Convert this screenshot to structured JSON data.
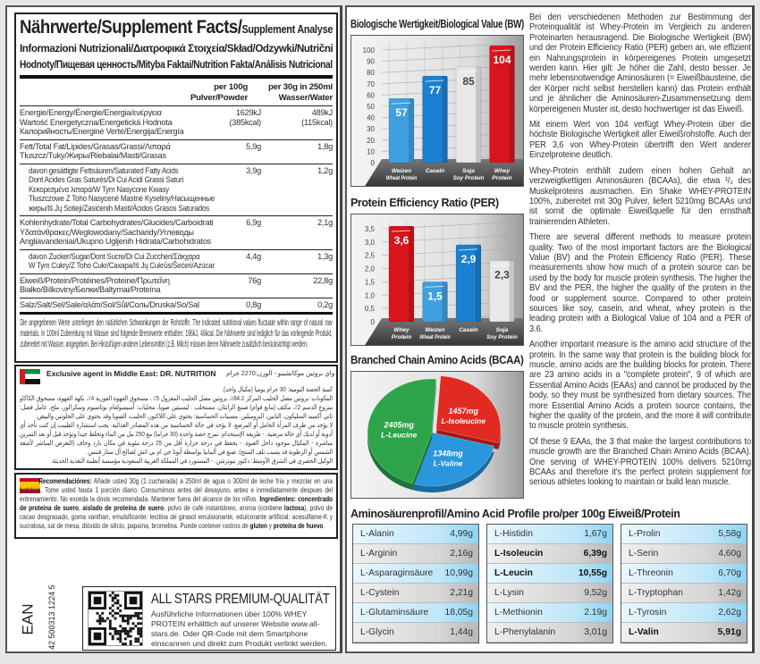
{
  "nutrition": {
    "title": "Nährwerte/Supplement Facts/",
    "title_small": "Supplement Analyse",
    "subtitle1": "Informazioni Nutrizionali/Διατροφικά Στοιχεία/Skład/Odzywki/Nutrični",
    "subtitle2": "Hodnoty/Пищевая ценность/Mityba Faktai/Nutrition Fakta/Análisis Nutricional",
    "col1": "per 100g\nPulver/Powder",
    "col2": "per 30g in 250ml\nWasser/Water",
    "rows": [
      {
        "label": "Energie/Energy/Énergie/Energia/ενέργεια\nWartość Energetyczna/Energetická Hodnota\nКалорийность/Energinė Vertė/Energija/Energía",
        "v1": "1629kJ\n(385kcal)",
        "v2": "489kJ\n(115kcal)"
      },
      {
        "label": "Fett/Total Fat/Lipides/Grasas/Grassi/Λιπαρά\nTłuszcz/Tuky/Жиры/Riebalai/Masti/Grasas",
        "v1": "5,9g",
        "v2": "1,8g"
      },
      {
        "label": "davon gesättigte Fettsäuren/Saturated Fatty Acids\nDont Acides Gras Saturés/Di Cui Acidi Grassi Saturi\nΚεκορεσμένα λιπαρά/W Tym Nasycone Kwasy\nTłuszczowe Z Toho Nasycené Mastné Kyseliny/Насыщенные\nжиры/Iš Jų Sotieji/Zasićenih Masti/Ácidos Grasos Saturados",
        "v1": "3,9g",
        "v2": "1,2g"
      },
      {
        "label": "Kohlenhydrate/Total Carbohydrates/Glucides/Carboidrati\nΥδατάνθρακες/Weglowodany/Sacharidy/Углеводы\nAngliavandeniai/Ukupno Ugljenih Hidrata/Carbohidratos",
        "v1": "6,9g",
        "v2": "2,1g"
      },
      {
        "label": "davon Zucker/Sugar/Dont Sucre/Di Cui Zuccheri/Σάκχαρα\nW Tym Cukry/Z Toho Cukr/Сахара/Iš Jų Cukrūs/Šećeri/Azúcar",
        "v1": "4,4g",
        "v2": "1,3g"
      },
      {
        "label": "Eiweiß/Protein/Protéines/Proteine/Πρωτεΐνη\nBiałko/Bílkoviny/Белки/Baltymai/Proteína",
        "v1": "76g",
        "v2": "22,8g"
      },
      {
        "label": "Salz/Salt/Sel/Sale/αλάτι/Sol/Sůl/Соль/Druska/So/Sal",
        "v1": "0,8g",
        "v2": "0,2g"
      }
    ],
    "note": "Die angegebenen Werte unterliegen den natürlichen Schwankungen der Rohstoffe. The indicated nutritional values fluctuate within range of natural raw materials. In 100ml Zubereitung mit Wasser sind folgende Brennwerte enthalten: 196kJ, 46kcal. Die Nährwerte sind lediglich für das vorliegende Produkt, zubereitet mit Wasser, angegeben. Bei Hinzufügen anderer Lebensmittel (z.B. Milch) müssen deren Nährwerte zusätzlich berücksichtigt werden."
  },
  "arabic": {
    "agent": "Exclusive agent in Middle East: DR. NUTRITION",
    "line1": "واي بروتين موكاتشينو - الوزن:2270 جرام",
    "line2": "كمية الحصة اليومية: 30 جرام يوميا (مكيال واحد).",
    "body": "المكونات: بروتين مصل الحليب المركز 84.2٪، بروتين مصل الحليب المعزول 5٪ ، مسحوق القهوة الفورية 4٪، نكهة القهوة، مسحوق الكاكاو منزوع الدسم 2٪، مكثف (مانع قوام) صمغ الزانثان، مستحلب : ليسيثين صويا، محليات: أسيسولفام بوتاسيوم وسكرالوز، ملح، عامل فصل: ثاني أكسيد السليكون، البابين، البروميلين. مسببات الحساسية: يحتوي على اللاكتوز، الحليب، الصويا وقد يحتوي على الجلوتين والبيض.",
    "body2": "لا يؤخذ من طرف المرأة الحامل أو المرضع. لا يؤخذ في حالة الحساسية من هذه المصادر الغذائية. يجب استشارة الطبيب إن كنت تأخذ أي أدوية أو لديك أي حالة مرضية. - طريقة الإستخدام: تمزج حصة واحدة (30 جراما) مع 250 مل من الماء وتخلط جيدا وتؤخذ قبل أو بعد التمرين مباشرة - المكيال موجود داخل العبوة. - يحفظ في درجة حرارة أقل من 25 درجة مئوية في مكان بارد وجاف (التعرض المباشر لأشعة الشمس أو الرطوبة قد يسبب تلف المنتج). صنع في ألمانيا بواسطة أنوتا جي ام بي اتش لصالح أل ستار فتنس.",
    "body3": "الوكيل الحصري في الشرق الأوسط: دكتور نيوترشن. - المستورد في المملكة العربية السعودية مؤسسة أنظمة التغذية الحديثة."
  },
  "spanish": {
    "segments": [
      {
        "t": "Recomendaciónes:",
        "b": true
      },
      {
        "t": " Añade usted 30g (1 cucharada) a 250ml de agua o 300ml de leche fría y mezclar en una batidora. Tome usted hasta 1 porción diario. Consumimos antes del desayuno, antes e inmediatamente despues del entrenamiento. No exceda la dosis recomendada. Mantener fuera del alcance de los niños. ",
        "b": false
      },
      {
        "t": "Ingredientes: concentrado de proteína de suero",
        "b": true
      },
      {
        "t": ", ",
        "b": false
      },
      {
        "t": "aislado de proteína de suero",
        "b": true
      },
      {
        "t": ", polvo de café instantáneo, aroma (contiene ",
        "b": false
      },
      {
        "t": "lactosa",
        "b": true
      },
      {
        "t": "), polvo de cacao desgrasado, goma xanthan, emulsificante: lecitina de girasol emulsionante, edulcorante artificial: acesulfame-K y sucralosa, sal de mesa, dióxido de silicio, papaína, bromelina. Puede contener rastros de ",
        "b": false
      },
      {
        "t": "gluten",
        "b": true
      },
      {
        "t": " y ",
        "b": false
      },
      {
        "t": "proteína de huevo",
        "b": true
      },
      {
        "t": ".",
        "b": false
      }
    ]
  },
  "ean": {
    "label": "EAN",
    "number": "42 500313 1224 5"
  },
  "qr": {
    "title": "ALL STARS PREMIUM-QUALITÄT",
    "text": "Ausführliche Informationen über 100% WHEY PROTEIN erhältlich auf unserer Website www.all-stars.de. Oder QR-Code mit dem Smartphone einscannen und direkt zum Produkt verlinkt werden."
  },
  "chart_data": [
    {
      "type": "bar",
      "title": "Biologische Wertigkeit/Biological Value (BW)",
      "categories": [
        "Weizen\nWheat Protein",
        "Casein",
        "Soja\nSoy Protein",
        "Whey\nProtein"
      ],
      "values": [
        57,
        77,
        85,
        104
      ],
      "colors": [
        "#3fa0e0",
        "#1a80d0",
        "#e8e8e8",
        "#d8141c"
      ],
      "ylim": [
        0,
        100
      ],
      "yticks": [
        0,
        10,
        20,
        30,
        40,
        50,
        60,
        70,
        80,
        90,
        100
      ],
      "grid": true
    },
    {
      "type": "bar",
      "title": "Protein Efficiency Ratio (PER)",
      "categories": [
        "Whey\nProtein",
        "Weizen\nWheat Protein",
        "Casein",
        "Soja\nSoy Protein"
      ],
      "values": [
        3.6,
        1.5,
        2.9,
        2.3
      ],
      "labels": [
        "3,6",
        "1,5",
        "2,9",
        "2,3"
      ],
      "colors": [
        "#d8141c",
        "#3fa0e0",
        "#1a80d0",
        "#e8e8e8"
      ],
      "ylim": [
        0,
        3.5
      ],
      "yticks": [
        "0",
        "0,5",
        "1,0",
        "1,5",
        "2,0",
        "2,5",
        "3,0",
        "3,5"
      ],
      "grid": true
    },
    {
      "type": "pie",
      "title": "Branched Chain Amino Acids (BCAA)",
      "slices": [
        {
          "label": "L-Isoleucine",
          "value": 1457,
          "text": "1457mg",
          "color": "#e02a22"
        },
        {
          "label": "L-Valine",
          "value": 1348,
          "text": "1348mg",
          "color": "#2a96dc"
        },
        {
          "label": "L-Leucine",
          "value": 2405,
          "text": "2405mg",
          "color": "#2ea44a"
        }
      ]
    }
  ],
  "right_text": [
    "Bei den verschiedenen Methoden zur Bestimmung der Proteinqualität ist Whey-Protein im Vergleich zu anderen Proteinarten herausragend. Die Biologische Wertigkeit (BW) und der Protein Efficiency Ratio (PER) geben an, wie effizient ein Nahrungsprotein in körpereigenes Protein umgesetzt werden kann. Hier gilt: Je höher die Zahl, desto besser. Je mehr lebensnotwendige Aminosäuren (= Eiweißbausteine, die der Körper nicht selbst herstellen kann) das Protein enthält und je ähnlicher die Aminosäuren-Zusammensetzung dem körpereigenen Muster ist, desto hochwertiger ist das Eiweiß.",
    "Mit einem Wert von 104 verfügt Whey-Protein über die höchste Biologische Wertigkeit aller Eiweißrohstoffe. Auch der PER 3,6 von Whey-Protein übertrifft den Wert anderer Einzelproteine deutlich.",
    "Whey-Protein enthält zudem einen hohen Gehalt an verzweigtkettigen Aminosäuren (BCAAs), die etwa ¹/₃ des Muskelproteins ausmachen. Ein Shake WHEY-PROTEIN 100%, zubereitet mit 30g Pulver, liefert 5210mg BCAAs und ist somit die optimale Eiweißquelle für den ernsthaft trainierenden Athleten.",
    "There are several different methods to measure protein quality. Two of the most important factors are the Biological Value (BV) and the Protein Efficiency Ratio (PER). These measurements show how much of a protein source can be used by the body for muscle protein synthesis. The higher the BV and the PER, the higher the quality of the protein in the food or supplement source. Compared to other protein sources like soy, casein, and wheat, whey protein is the leading protein with a Biological Value of 104 and a PER of 3.6.",
    "Another important measure is the amino acid structure of the protein. In the same way that protein is the building block for muscle, amino acids are the building blocks for protein. There are 23 amino acids in a \"complete protein\", 9 of which are Essential Amino Acids (EAAs) and cannot be produced by the body, so they must be synthesized from dietary sources. The more Essential Amino Acids a protein source contains, the higher the quality of the protein, and the more it will contribute to muscle protein synthesis.",
    "Of these 9 EAAs, the 3 that make the largest contributions to muscle growth are the Branched Chain Amino Acids (BCAA). One serving of WHEY-PROTEIN 100% delivers 5210mg BCAAs and therefore it's the perfect protein supplement for serious athletes looking to maintain or build lean muscle."
  ],
  "amino": {
    "title": "Aminosäurenprofil/Amino Acid Profile pro/per 100g Eiweiß/Protein",
    "tables": [
      [
        {
          "n": "L-Alanin",
          "v": "4,99g"
        },
        {
          "n": "L-Arginin",
          "v": "2,16g"
        },
        {
          "n": "L-Asparaginsäure",
          "v": "10,99g"
        },
        {
          "n": "L-Cystein",
          "v": "2,21g"
        },
        {
          "n": "L-Glutaminsäure",
          "v": "18,05g"
        },
        {
          "n": "L-Glycin",
          "v": "1,44g"
        }
      ],
      [
        {
          "n": "L-Histidin",
          "v": "1,67g"
        },
        {
          "n": "L-Isoleucin",
          "v": "6,39g",
          "bold": true
        },
        {
          "n": "L-Leucin",
          "v": "10,55g",
          "bold": true
        },
        {
          "n": "L-Lysin",
          "v": "9,52g"
        },
        {
          "n": "L-Methionin",
          "v": "2.19g"
        },
        {
          "n": "L-Phenylalanin",
          "v": "3,01g"
        }
      ],
      [
        {
          "n": "L-Prolin",
          "v": "5,58g"
        },
        {
          "n": "L-Serin",
          "v": "4,60g"
        },
        {
          "n": "L-Threonin",
          "v": "6,70g"
        },
        {
          "n": "L-Tryptophan",
          "v": "1,42g"
        },
        {
          "n": "L-Tyrosin",
          "v": "2,62g"
        },
        {
          "n": "L-Valin",
          "v": "5,91g",
          "bold": true
        }
      ]
    ]
  }
}
